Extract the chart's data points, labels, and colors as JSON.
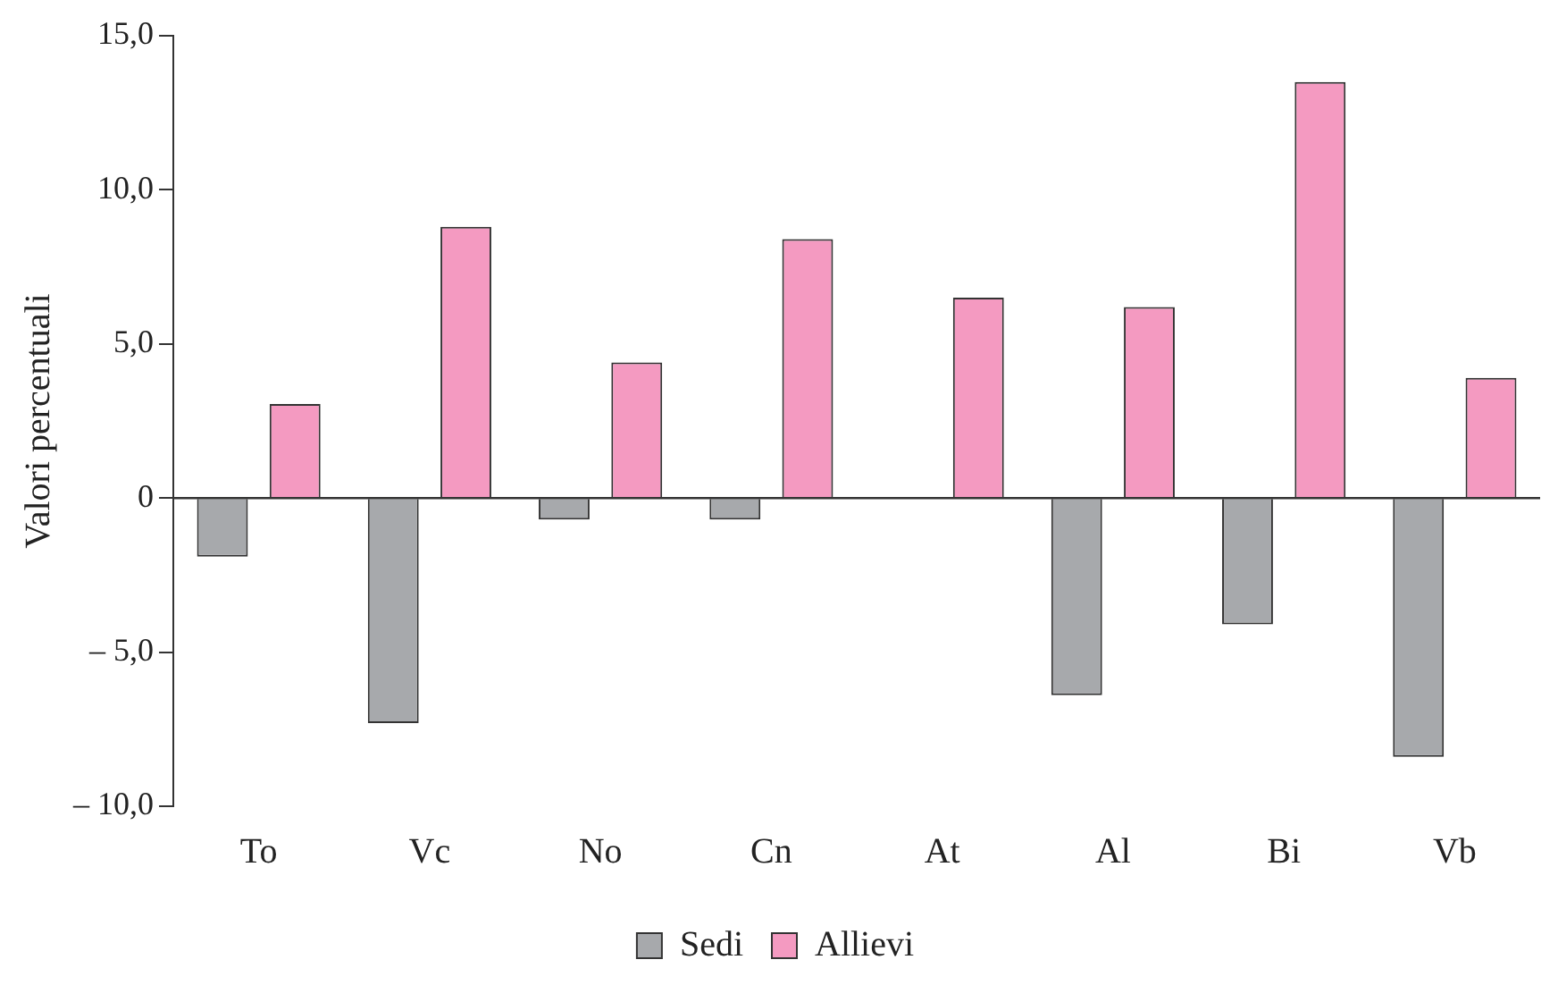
{
  "chart_data": {
    "type": "bar",
    "ylabel": "Valori percentuali",
    "categories": [
      "To",
      "Vc",
      "No",
      "Cn",
      "At",
      "Al",
      "Bi",
      "Vb"
    ],
    "series": [
      {
        "name": "Sedi",
        "color": "#a7a9ac",
        "values": [
          -1.9,
          -7.3,
          -0.7,
          -0.7,
          0,
          -6.4,
          -4.1,
          -8.4
        ]
      },
      {
        "name": "Allievi",
        "color": "#f49ac1",
        "values": [
          3.05,
          8.8,
          4.4,
          8.4,
          6.5,
          6.2,
          13.5,
          3.9
        ]
      }
    ],
    "ylim": [
      -10,
      15
    ],
    "yticks": [
      {
        "value": -10,
        "label": "– 10,0"
      },
      {
        "value": -5,
        "label": "– 5,0"
      },
      {
        "value": 0,
        "label": "0"
      },
      {
        "value": 5,
        "label": "5,0"
      },
      {
        "value": 10,
        "label": "10,0"
      },
      {
        "value": 15,
        "label": "15,0"
      }
    ],
    "ref_lines": [
      {
        "axis": "y",
        "value": 0,
        "color": "#333333"
      }
    ],
    "grid": false,
    "legend": "bottom"
  }
}
